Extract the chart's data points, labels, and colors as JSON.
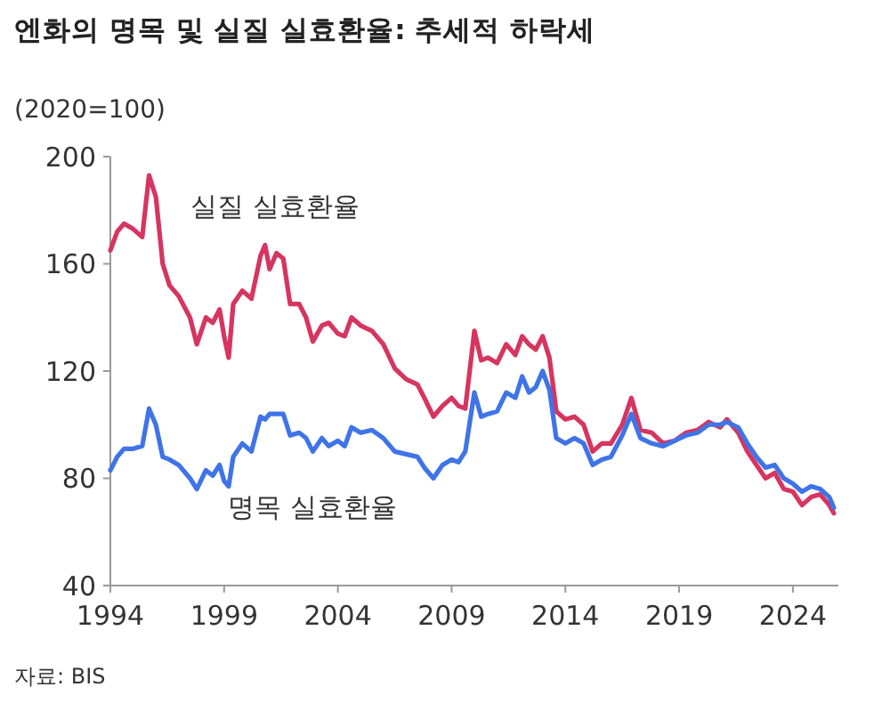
{
  "chart_data": {
    "type": "line",
    "title": "엔화의 명목 및 실질 실효환율: 추세적 하락세",
    "ylabel": "(2020=100)",
    "annotations": [
      "자료: BIS"
    ],
    "xlim": [
      1994,
      2026
    ],
    "xticks": [
      1994,
      1999,
      2004,
      2009,
      2014,
      2019,
      2024
    ],
    "ylim": [
      40,
      200
    ],
    "yticks": [
      40,
      80,
      120,
      160,
      200
    ],
    "grid": false,
    "legend": false,
    "line_style": "solid",
    "marker": "none",
    "x": [
      1994.0,
      1994.3,
      1994.6,
      1995.0,
      1995.4,
      1995.7,
      1996.0,
      1996.3,
      1996.6,
      1997.0,
      1997.5,
      1997.8,
      1998.2,
      1998.5,
      1998.8,
      1999.0,
      1999.2,
      1999.4,
      1999.8,
      2000.2,
      2000.6,
      2000.8,
      2001.0,
      2001.3,
      2001.6,
      2001.9,
      2002.3,
      2002.6,
      2002.9,
      2003.3,
      2003.6,
      2004.0,
      2004.3,
      2004.6,
      2005.0,
      2005.5,
      2006.0,
      2006.5,
      2007.0,
      2007.5,
      2007.8,
      2008.2,
      2008.6,
      2009.0,
      2009.3,
      2009.6,
      2010.0,
      2010.3,
      2010.6,
      2011.0,
      2011.4,
      2011.8,
      2012.1,
      2012.4,
      2012.7,
      2013.0,
      2013.3,
      2013.6,
      2014.0,
      2014.4,
      2014.8,
      2015.2,
      2015.6,
      2016.0,
      2016.5,
      2016.9,
      2017.3,
      2017.8,
      2018.3,
      2018.8,
      2019.3,
      2019.8,
      2020.3,
      2020.8,
      2021.1,
      2021.6,
      2022.0,
      2022.4,
      2022.8,
      2023.2,
      2023.6,
      2024.0,
      2024.4,
      2024.8,
      2025.2,
      2025.6,
      2025.8
    ],
    "series": [
      {
        "name": "실질 실효환율",
        "color": "#d6355f",
        "values": [
          165,
          172,
          175,
          173,
          170,
          193,
          185,
          160,
          152,
          148,
          140,
          130,
          140,
          138,
          143,
          133,
          125,
          145,
          150,
          147,
          163,
          167,
          158,
          164,
          162,
          145,
          145,
          140,
          131,
          137,
          138,
          134,
          133,
          140,
          137,
          135,
          130,
          121,
          117,
          115,
          110,
          103,
          107,
          110,
          107,
          106,
          135,
          124,
          125,
          123,
          130,
          126,
          133,
          130,
          128,
          133,
          125,
          105,
          102,
          103,
          100,
          90,
          93,
          93,
          100,
          110,
          98,
          97,
          93,
          94,
          97,
          98,
          101,
          99,
          102,
          97,
          90,
          85,
          80,
          82,
          76,
          75,
          70,
          73,
          74,
          70,
          67
        ]
      },
      {
        "name": "명목 실효환율",
        "color": "#3f74e8",
        "values": [
          83,
          88,
          91,
          91,
          92,
          106,
          100,
          88,
          87,
          85,
          80,
          76,
          83,
          81,
          85,
          79,
          77,
          88,
          93,
          90,
          103,
          102,
          104,
          104,
          104,
          96,
          97,
          95,
          90,
          95,
          92,
          94,
          92,
          99,
          97,
          98,
          95,
          90,
          89,
          88,
          84,
          80,
          85,
          87,
          86,
          90,
          112,
          103,
          104,
          105,
          112,
          110,
          118,
          112,
          114,
          120,
          113,
          95,
          93,
          95,
          93,
          85,
          87,
          88,
          96,
          104,
          95,
          93,
          92,
          94,
          96,
          97,
          100,
          100,
          101,
          99,
          93,
          88,
          84,
          85,
          80,
          78,
          75,
          77,
          76,
          73,
          69
        ]
      }
    ]
  }
}
